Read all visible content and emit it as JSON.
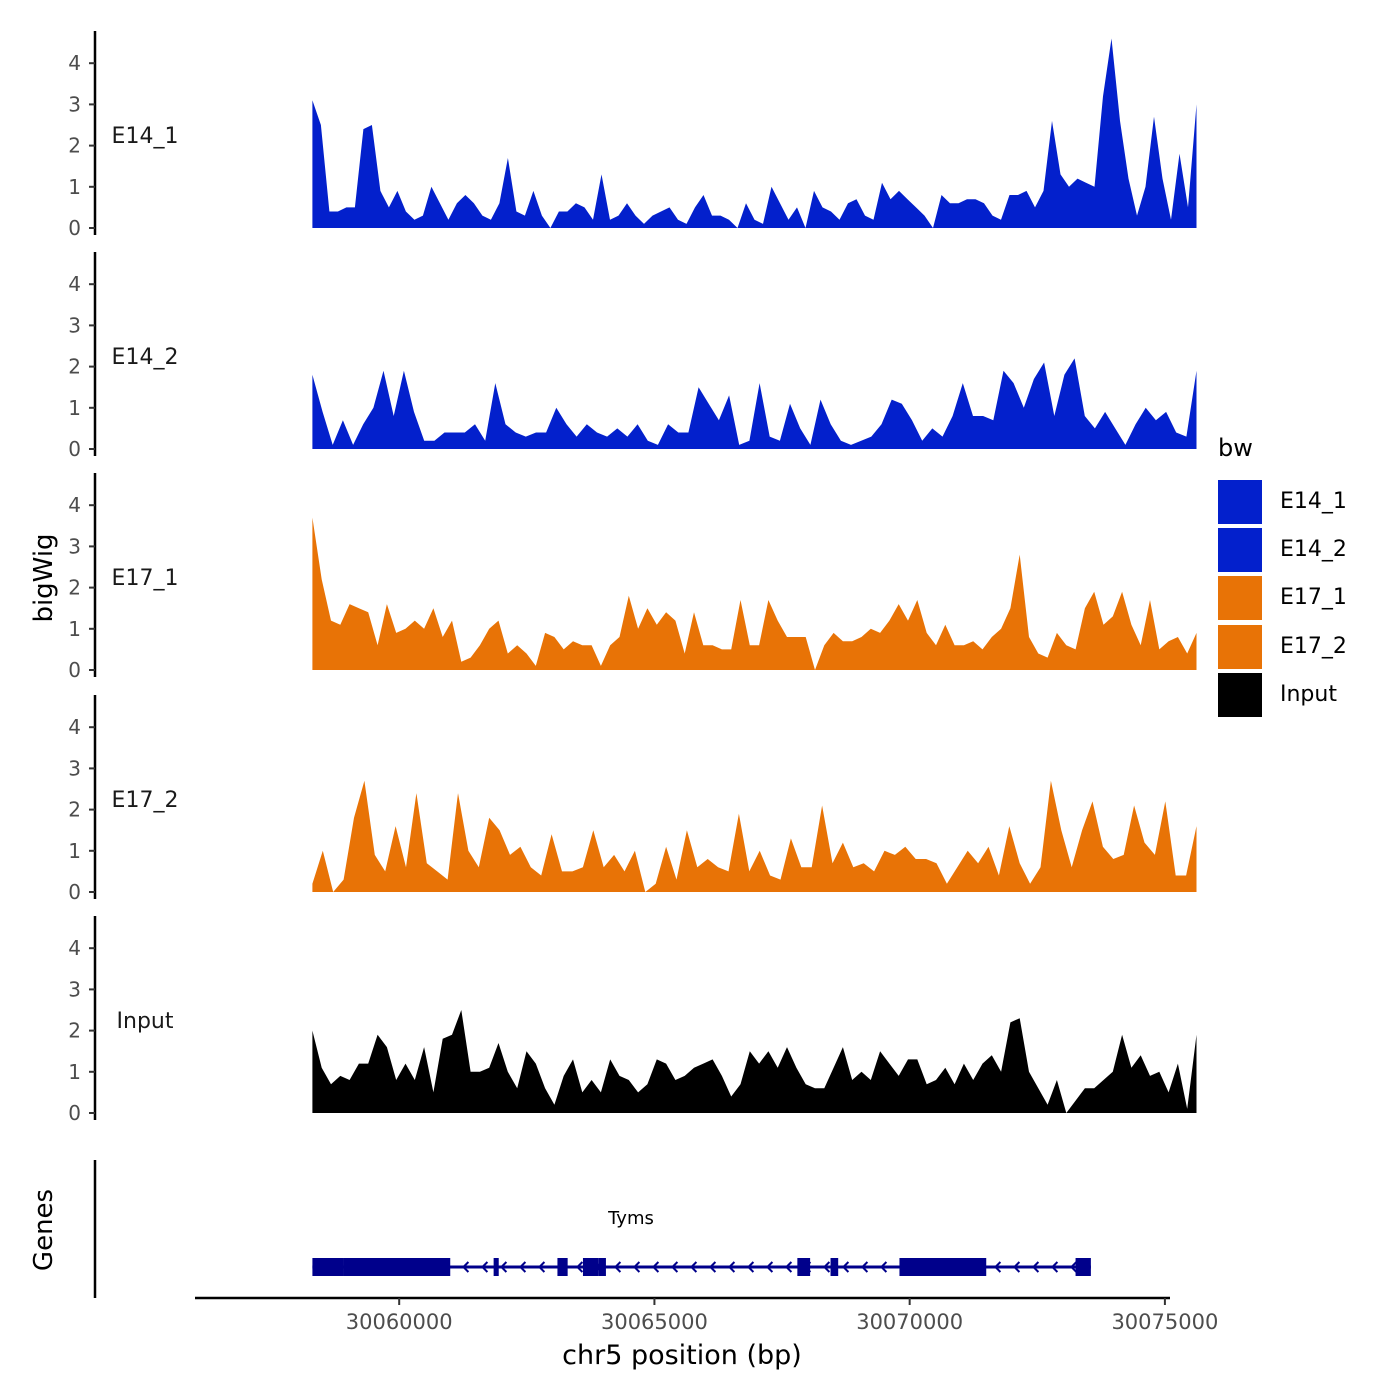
{
  "chart_data": {
    "type": "area",
    "y_title": "bigWig",
    "x_title": "chr5 position (bp)",
    "legend_title": "bw",
    "legend_position": "right",
    "y_ticks": [
      "0",
      "1",
      "2",
      "3",
      "4"
    ],
    "ylim": [
      0,
      4.8
    ],
    "xlim": [
      30056000,
      30075100
    ],
    "x_ticks": [
      {
        "value": 30060000,
        "label": "30060000"
      },
      {
        "value": 30065000,
        "label": "30065000"
      },
      {
        "value": 30070000,
        "label": "30070000"
      },
      {
        "value": 30075000,
        "label": "30075000"
      }
    ],
    "track_start": 30058300,
    "track_end": 30075620,
    "series": [
      {
        "name": "E14_1",
        "color": "#0320CC",
        "values": [
          3.1,
          2.5,
          0.4,
          0.4,
          0.5,
          0.5,
          2.4,
          2.5,
          0.9,
          0.5,
          0.9,
          0.4,
          0.2,
          0.3,
          1.0,
          0.6,
          0.2,
          0.6,
          0.8,
          0.6,
          0.3,
          0.2,
          0.6,
          1.7,
          0.4,
          0.3,
          0.9,
          0.3,
          0.0,
          0.4,
          0.4,
          0.6,
          0.5,
          0.2,
          1.3,
          0.2,
          0.3,
          0.6,
          0.3,
          0.1,
          0.3,
          0.4,
          0.5,
          0.2,
          0.1,
          0.5,
          0.8,
          0.3,
          0.3,
          0.2,
          0.0,
          0.6,
          0.2,
          0.1,
          1.0,
          0.6,
          0.2,
          0.5,
          0.0,
          0.9,
          0.5,
          0.4,
          0.2,
          0.6,
          0.7,
          0.3,
          0.2,
          1.1,
          0.7,
          0.9,
          0.7,
          0.5,
          0.3,
          0.0,
          0.8,
          0.6,
          0.6,
          0.7,
          0.7,
          0.6,
          0.3,
          0.2,
          0.8,
          0.8,
          0.9,
          0.5,
          0.9,
          2.6,
          1.3,
          1.0,
          1.2,
          1.1,
          1.0,
          3.2,
          4.6,
          2.6,
          1.2,
          0.3,
          1.0,
          2.7,
          1.2,
          0.2,
          1.8,
          0.5,
          3.0
        ]
      },
      {
        "name": "E14_2",
        "color": "#0320CC",
        "values": [
          1.8,
          0.9,
          0.1,
          0.7,
          0.1,
          0.6,
          1.0,
          1.9,
          0.8,
          1.9,
          0.9,
          0.2,
          0.2,
          0.4,
          0.4,
          0.4,
          0.6,
          0.2,
          1.6,
          0.6,
          0.4,
          0.3,
          0.4,
          0.4,
          1.0,
          0.6,
          0.3,
          0.6,
          0.4,
          0.3,
          0.5,
          0.3,
          0.6,
          0.2,
          0.1,
          0.6,
          0.4,
          0.4,
          1.5,
          1.1,
          0.7,
          1.3,
          0.1,
          0.2,
          1.6,
          0.3,
          0.2,
          1.1,
          0.5,
          0.1,
          1.2,
          0.6,
          0.2,
          0.1,
          0.2,
          0.3,
          0.6,
          1.2,
          1.1,
          0.7,
          0.2,
          0.5,
          0.3,
          0.8,
          1.6,
          0.8,
          0.8,
          0.7,
          1.9,
          1.6,
          1.0,
          1.7,
          2.1,
          0.8,
          1.8,
          2.2,
          0.8,
          0.5,
          0.9,
          0.5,
          0.1,
          0.6,
          1.0,
          0.7,
          0.9,
          0.4,
          0.3,
          1.9
        ]
      },
      {
        "name": "E17_1",
        "color": "#E87306",
        "values": [
          3.7,
          2.2,
          1.2,
          1.1,
          1.6,
          1.5,
          1.4,
          0.6,
          1.6,
          0.9,
          1.0,
          1.2,
          1.0,
          1.5,
          0.8,
          1.2,
          0.2,
          0.3,
          0.6,
          1.0,
          1.2,
          0.4,
          0.6,
          0.4,
          0.1,
          0.9,
          0.8,
          0.5,
          0.7,
          0.6,
          0.6,
          0.1,
          0.6,
          0.8,
          1.8,
          1.0,
          1.5,
          1.1,
          1.4,
          1.2,
          0.4,
          1.4,
          0.6,
          0.6,
          0.5,
          0.5,
          1.7,
          0.6,
          0.6,
          1.7,
          1.2,
          0.8,
          0.8,
          0.8,
          0.0,
          0.6,
          0.9,
          0.7,
          0.7,
          0.8,
          1.0,
          0.9,
          1.2,
          1.6,
          1.2,
          1.7,
          0.9,
          0.6,
          1.1,
          0.6,
          0.6,
          0.7,
          0.5,
          0.8,
          1.0,
          1.5,
          2.8,
          0.8,
          0.4,
          0.3,
          0.9,
          0.6,
          0.5,
          1.5,
          1.9,
          1.1,
          1.3,
          1.9,
          1.1,
          0.6,
          1.7,
          0.5,
          0.7,
          0.8,
          0.4,
          0.9
        ]
      },
      {
        "name": "E17_2",
        "color": "#E87306",
        "values": [
          0.2,
          1.0,
          0.0,
          0.3,
          1.8,
          2.7,
          0.9,
          0.5,
          1.6,
          0.6,
          2.4,
          0.7,
          0.5,
          0.3,
          2.4,
          1.0,
          0.6,
          1.8,
          1.5,
          0.9,
          1.1,
          0.6,
          0.4,
          1.4,
          0.5,
          0.5,
          0.6,
          1.5,
          0.6,
          0.9,
          0.5,
          1.0,
          0.0,
          0.2,
          1.1,
          0.3,
          1.5,
          0.6,
          0.8,
          0.6,
          0.5,
          1.9,
          0.5,
          1.0,
          0.4,
          0.3,
          1.3,
          0.6,
          0.6,
          2.1,
          0.7,
          1.2,
          0.6,
          0.7,
          0.5,
          1.0,
          0.9,
          1.1,
          0.8,
          0.8,
          0.7,
          0.2,
          0.6,
          1.0,
          0.7,
          1.1,
          0.4,
          1.6,
          0.7,
          0.2,
          0.6,
          2.7,
          1.5,
          0.6,
          1.5,
          2.2,
          1.1,
          0.8,
          0.9,
          2.1,
          1.2,
          0.9,
          2.2,
          0.4,
          0.4,
          1.6
        ]
      },
      {
        "name": "Input",
        "color": "#000000",
        "values": [
          2.0,
          1.1,
          0.7,
          0.9,
          0.8,
          1.2,
          1.2,
          1.9,
          1.6,
          0.8,
          1.2,
          0.8,
          1.6,
          0.5,
          1.8,
          1.9,
          2.5,
          1.0,
          1.0,
          1.1,
          1.7,
          1.0,
          0.6,
          1.5,
          1.2,
          0.6,
          0.2,
          0.9,
          1.3,
          0.5,
          0.8,
          0.5,
          1.3,
          0.9,
          0.8,
          0.5,
          0.7,
          1.3,
          1.2,
          0.8,
          0.9,
          1.1,
          1.2,
          1.3,
          0.9,
          0.4,
          0.7,
          1.5,
          1.2,
          1.5,
          1.1,
          1.6,
          1.1,
          0.7,
          0.6,
          0.6,
          1.1,
          1.6,
          0.8,
          1.0,
          0.8,
          1.5,
          1.2,
          0.9,
          1.3,
          1.3,
          0.7,
          0.8,
          1.1,
          0.7,
          1.2,
          0.8,
          1.2,
          1.4,
          1.0,
          2.2,
          2.3,
          1.0,
          0.6,
          0.2,
          0.8,
          0.0,
          0.3,
          0.6,
          0.6,
          0.8,
          1.0,
          1.9,
          1.1,
          1.4,
          0.9,
          1.0,
          0.5,
          1.2,
          0.1,
          1.9
        ]
      }
    ],
    "genes_title": "Genes",
    "gene": {
      "name": "Tyms",
      "color": "#00008B",
      "start": 30058300,
      "end": 30073550,
      "strand": "-",
      "exons": [
        [
          30058300,
          30058900
        ],
        [
          30058900,
          30061000
        ],
        [
          30061850,
          30061950
        ],
        [
          30063100,
          30063300
        ],
        [
          30063600,
          30063900
        ],
        [
          30063900,
          30064050
        ],
        [
          30067800,
          30068050
        ],
        [
          30068450,
          30068600
        ],
        [
          30069800,
          30071500
        ],
        [
          30073250,
          30073550
        ]
      ]
    }
  }
}
